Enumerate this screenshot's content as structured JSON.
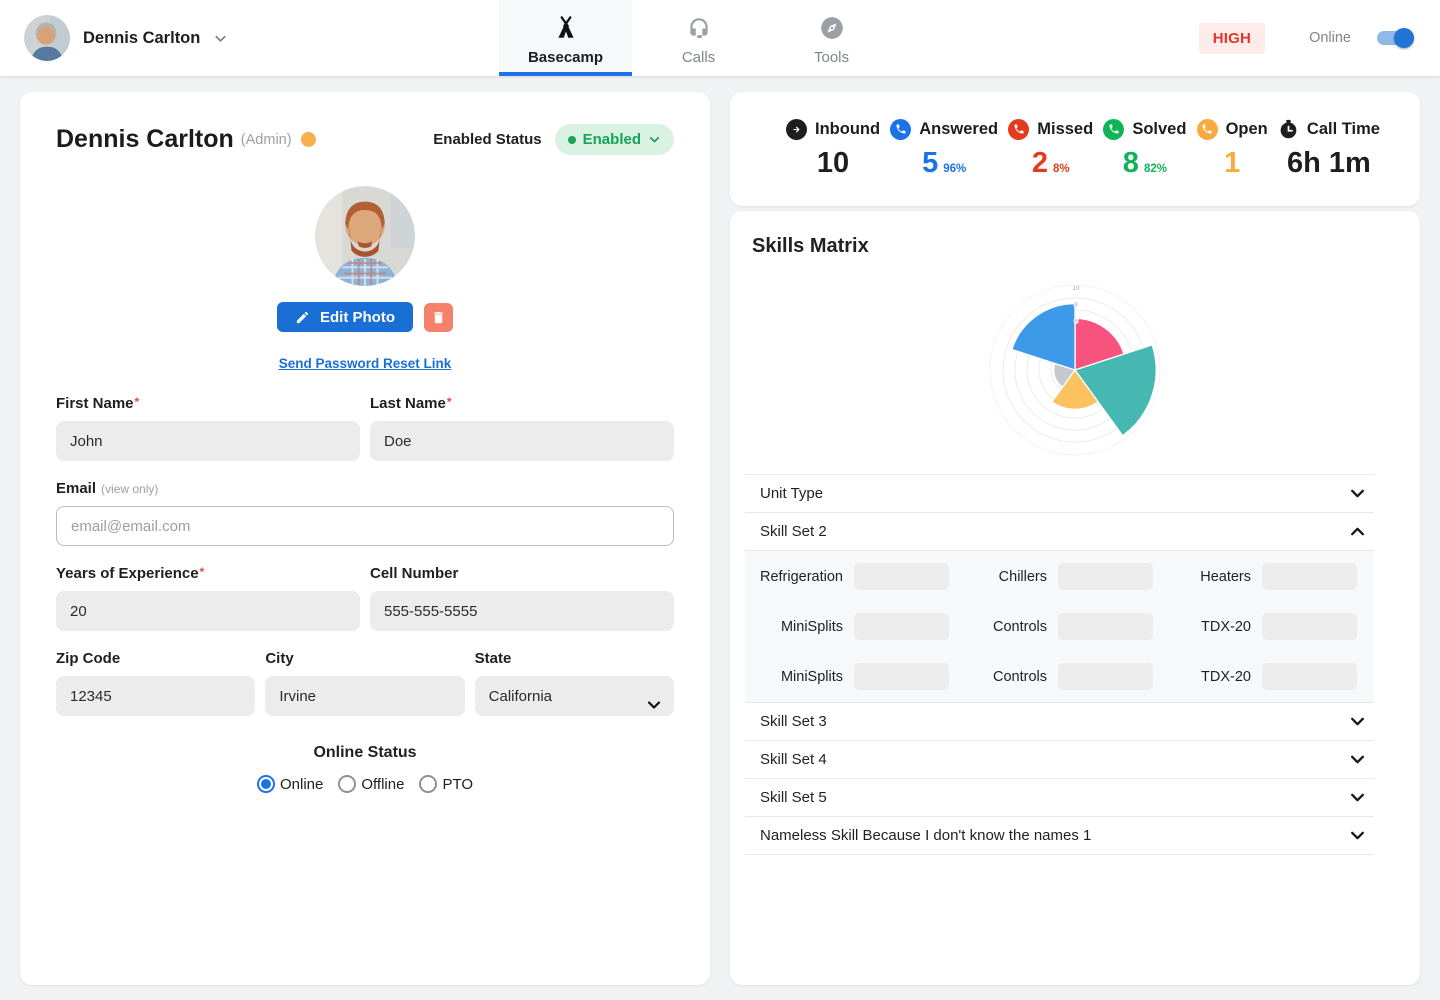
{
  "header": {
    "user": {
      "name": "Dennis Carlton"
    },
    "tabs": [
      {
        "label": "Basecamp"
      },
      {
        "label": "Calls"
      },
      {
        "label": "Tools"
      }
    ],
    "active_tab": "Basecamp",
    "priority_badge": "HIGH",
    "online_toggle_label": "Online",
    "colors": {
      "active_tab_accent": "#1a73e8",
      "high_badge_text": "#e5352b",
      "high_badge_bg": "#fdecea",
      "toggle_on": "#2173d4"
    }
  },
  "profile_card": {
    "name": "Dennis Carlton",
    "role": "(Admin)",
    "status_dot_color": "#f8b04c",
    "enabled_status_label": "Enabled Status",
    "enabled_status_value": "Enabled",
    "enabled_pill_colors": {
      "bg": "#d9f2e2",
      "text": "#16a35a"
    },
    "edit_photo_button": "Edit Photo",
    "reset_password_link": "Send Password Reset Link",
    "required_mark": "*",
    "fields": {
      "first_name": {
        "label": "First Name",
        "value": "John",
        "required": true
      },
      "last_name": {
        "label": "Last Name",
        "value": "Doe",
        "required": true
      },
      "email": {
        "label": "Email",
        "note": "(view only)",
        "placeholder": "email@email.com",
        "value": ""
      },
      "years_experience": {
        "label": "Years of Experience",
        "value": "20",
        "required": true
      },
      "cell_number": {
        "label": "Cell Number",
        "value": "555-555-5555"
      },
      "zip": {
        "label": "Zip Code",
        "value": "12345"
      },
      "city": {
        "label": "City",
        "value": "Irvine"
      },
      "state": {
        "label": "State",
        "value": "California"
      }
    },
    "online_status": {
      "label": "Online Status",
      "options": [
        "Online",
        "Offline",
        "PTO"
      ],
      "selected": "Online"
    }
  },
  "stats": [
    {
      "label": "Inbound",
      "value": "10",
      "percent": "",
      "color": "#1d1e20",
      "icon": "arrow-right-circle-icon"
    },
    {
      "label": "Answered",
      "value": "5",
      "percent": "96%",
      "color": "#1a73e8",
      "icon": "phone-icon"
    },
    {
      "label": "Missed",
      "value": "2",
      "percent": "8%",
      "color": "#e23c1d",
      "icon": "phone-icon"
    },
    {
      "label": "Solved",
      "value": "8",
      "percent": "82%",
      "color": "#0fb457",
      "icon": "phone-icon"
    },
    {
      "label": "Open",
      "value": "1",
      "percent": "",
      "color": "#f9ab42",
      "icon": "phone-icon"
    },
    {
      "label": "Call Time",
      "value": "6h 1m",
      "percent": "",
      "color": "#1d1e20",
      "icon": "stopwatch-icon"
    }
  ],
  "skills_card": {
    "title": "Skills Matrix",
    "chart_data": {
      "type": "polar-area",
      "title": "Skills Matrix",
      "legend": "none",
      "start_angle_deg": 0,
      "direction": "clockwise",
      "segments": [
        {
          "color": "#F8537F",
          "value": 6.3
        },
        {
          "color": "#45B8B2",
          "value": 9.9
        },
        {
          "color": "#FBC25F",
          "value": 4.8
        },
        {
          "color": "#C4C9CD",
          "value": 2.6
        },
        {
          "color": "#3D9AE8",
          "value": 8.1
        }
      ],
      "axis": {
        "max": 10,
        "visible_ticks": [
          6,
          8,
          10
        ]
      }
    },
    "accordion": [
      {
        "label": "Unit Type",
        "expanded": false
      },
      {
        "label": "Skill Set 2",
        "expanded": true,
        "skills": [
          {
            "label": "Refrigeration"
          },
          {
            "label": "Chillers"
          },
          {
            "label": "Heaters"
          },
          {
            "label": "MiniSplits"
          },
          {
            "label": "Controls"
          },
          {
            "label": "TDX-20"
          },
          {
            "label": "MiniSplits"
          },
          {
            "label": "Controls"
          },
          {
            "label": "TDX-20"
          }
        ]
      },
      {
        "label": "Skill Set 3",
        "expanded": false
      },
      {
        "label": "Skill Set 4",
        "expanded": false
      },
      {
        "label": "Skill Set 5",
        "expanded": false
      },
      {
        "label": "Nameless Skill Because I don't know the names 1",
        "expanded": false
      }
    ]
  }
}
